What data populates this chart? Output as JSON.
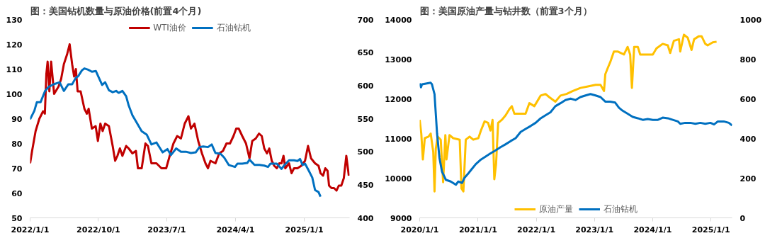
{
  "chart_data": [
    {
      "type": "line",
      "title": "图：美国钻机数量与原油价格(前置4个月)",
      "legend": "top",
      "grid": false,
      "xlim": [
        "2022-01-01",
        "2025-07-01"
      ],
      "xticks": [
        {
          "value": "2022-01-01",
          "label": "2022/1/1"
        },
        {
          "value": "2022-10-01",
          "label": "2022/10/1"
        },
        {
          "value": "2023-07-01",
          "label": "2023/7/1"
        },
        {
          "value": "2024-04-01",
          "label": "2024/4/1"
        },
        {
          "value": "2025-01-01",
          "label": "2025/1/1"
        }
      ],
      "ylim": [
        50,
        130
      ],
      "yticks": [
        50,
        60,
        70,
        80,
        90,
        100,
        110,
        120,
        130
      ],
      "y2lim": [
        400,
        700
      ],
      "y2ticks": [
        400,
        450,
        500,
        550,
        600,
        650,
        700
      ],
      "series": [
        {
          "name": "WTI油价",
          "color": "#c00000",
          "x": [
            "2022-01-01",
            "2022-01-09",
            "2022-01-23",
            "2022-02-07",
            "2022-02-22",
            "2022-03-01",
            "2022-03-07",
            "2022-03-12",
            "2022-03-19",
            "2022-03-26",
            "2022-04-07",
            "2022-04-25",
            "2022-05-05",
            "2022-05-16",
            "2022-05-29",
            "2022-06-08",
            "2022-06-18",
            "2022-06-26",
            "2022-07-03",
            "2022-07-10",
            "2022-07-22",
            "2022-08-06",
            "2022-08-16",
            "2022-08-23",
            "2022-09-05",
            "2022-09-20",
            "2022-09-29",
            "2022-10-09",
            "2022-10-18",
            "2022-10-28",
            "2022-11-12",
            "2022-11-27",
            "2022-12-07",
            "2022-12-16",
            "2022-12-26",
            "2023-01-05",
            "2023-01-20",
            "2023-01-30",
            "2023-02-14",
            "2023-02-28",
            "2023-03-08",
            "2023-03-23",
            "2023-04-07",
            "2023-04-17",
            "2023-05-01",
            "2023-05-21",
            "2023-06-10",
            "2023-06-29",
            "2023-07-13",
            "2023-07-28",
            "2023-08-12",
            "2023-08-27",
            "2023-09-11",
            "2023-09-26",
            "2023-10-06",
            "2023-10-20",
            "2023-11-04",
            "2023-11-19",
            "2023-12-03",
            "2023-12-13",
            "2023-12-23",
            "2024-01-12",
            "2024-01-27",
            "2024-02-11",
            "2024-02-25",
            "2024-03-10",
            "2024-03-24",
            "2024-04-04",
            "2024-04-14",
            "2024-04-28",
            "2024-05-13",
            "2024-05-27",
            "2024-06-07",
            "2024-06-21",
            "2024-07-04",
            "2024-07-15",
            "2024-07-25",
            "2024-08-05",
            "2024-08-14",
            "2024-08-24",
            "2024-09-03",
            "2024-09-13",
            "2024-09-23",
            "2024-10-02",
            "2024-10-10",
            "2024-10-17",
            "2024-11-01",
            "2024-11-11",
            "2024-11-21",
            "2024-12-05",
            "2024-12-20",
            "2025-01-04",
            "2025-01-16",
            "2025-01-28",
            "2025-02-13",
            "2025-02-27",
            "2025-03-07",
            "2025-03-17",
            "2025-03-26",
            "2025-04-04",
            "2025-04-10",
            "2025-04-20",
            "2025-04-30",
            "2025-05-10",
            "2025-05-19",
            "2025-05-29",
            "2025-06-08",
            "2025-06-18",
            "2025-06-28"
          ],
          "values": [
            72,
            77,
            85,
            90,
            93,
            92,
            108,
            113,
            101,
            113,
            100,
            103,
            106,
            112,
            116,
            120,
            112,
            107,
            110,
            101,
            101,
            94,
            92,
            94,
            86,
            87,
            81,
            88,
            85,
            88,
            87,
            79,
            73,
            75,
            78,
            75,
            79,
            78,
            76,
            77,
            70,
            70,
            80,
            79,
            72,
            72,
            70,
            70,
            75,
            80,
            83,
            82,
            88,
            91,
            86,
            88,
            81,
            76,
            72,
            70,
            73,
            72,
            76,
            77,
            80,
            80,
            83,
            86,
            86,
            83,
            80,
            74,
            81,
            82,
            84,
            83,
            78,
            76,
            78,
            73,
            71,
            70,
            72,
            72,
            75,
            70,
            72,
            68,
            70,
            70,
            71,
            73,
            79,
            74,
            72,
            71,
            68,
            67,
            70,
            69,
            63,
            62,
            62,
            61,
            63,
            63,
            66,
            75,
            67
          ]
        },
        {
          "name": "石油钻机",
          "color": "#0070c0",
          "axis": "y2",
          "x": [
            "2022-01-01",
            "2022-01-18",
            "2022-01-28",
            "2022-02-12",
            "2022-03-02",
            "2022-03-16",
            "2022-04-05",
            "2022-04-29",
            "2022-05-16",
            "2022-06-03",
            "2022-06-18",
            "2022-07-03",
            "2022-07-12",
            "2022-07-27",
            "2022-08-06",
            "2022-08-21",
            "2022-09-05",
            "2022-09-21",
            "2022-10-04",
            "2022-10-16",
            "2022-10-28",
            "2022-11-12",
            "2022-11-27",
            "2022-12-11",
            "2022-12-21",
            "2023-01-05",
            "2023-01-20",
            "2023-01-30",
            "2023-02-14",
            "2023-03-03",
            "2023-03-23",
            "2023-04-12",
            "2023-05-01",
            "2023-05-21",
            "2023-06-05",
            "2023-06-15",
            "2023-07-04",
            "2023-07-18",
            "2023-08-08",
            "2023-08-27",
            "2023-09-16",
            "2023-10-06",
            "2023-10-25",
            "2023-11-09",
            "2023-11-24",
            "2023-12-13",
            "2023-12-28",
            "2024-01-12",
            "2024-02-01",
            "2024-02-16",
            "2024-03-05",
            "2024-03-30",
            "2024-04-09",
            "2024-04-28",
            "2024-05-18",
            "2024-05-27",
            "2024-06-16",
            "2024-07-06",
            "2024-07-25",
            "2024-08-09",
            "2024-08-19",
            "2024-09-13",
            "2024-10-02",
            "2024-10-12",
            "2024-11-01",
            "2024-11-21",
            "2024-12-05",
            "2024-12-15",
            "2024-12-25",
            "2025-01-04",
            "2025-01-18",
            "2025-02-02",
            "2025-02-13",
            "2025-02-27",
            "2025-03-07"
          ],
          "values": [
            549,
            562,
            575,
            575,
            592,
            598,
            602,
            605,
            592,
            602,
            602,
            612,
            614,
            623,
            626,
            624,
            621,
            622,
            611,
            601,
            605,
            593,
            590,
            592,
            589,
            592,
            584,
            570,
            555,
            544,
            531,
            526,
            511,
            514,
            505,
            499,
            504,
            495,
            505,
            500,
            500,
            498,
            499,
            507,
            508,
            507,
            511,
            498,
            497,
            491,
            480,
            477,
            482,
            482,
            483,
            488,
            480,
            480,
            479,
            477,
            482,
            482,
            474,
            479,
            487,
            487,
            486,
            489,
            480,
            482,
            472,
            461,
            442,
            439,
            432
          ]
        }
      ]
    },
    {
      "type": "line",
      "title": "图：美国原油产量与钻井数（前置3个月）",
      "legend": "bottom",
      "grid": false,
      "xlim": [
        "2020-01-01",
        "2025-05-13"
      ],
      "xticks": [
        {
          "value": "2020-01-01",
          "label": "2020/1/1"
        },
        {
          "value": "2021-01-01",
          "label": "2021/1/1"
        },
        {
          "value": "2022-01-01",
          "label": "2022/1/1"
        },
        {
          "value": "2023-01-01",
          "label": "2023/1/1"
        },
        {
          "value": "2024-01-01",
          "label": "2024/1/1"
        },
        {
          "value": "2025-01-01",
          "label": "2025/1/1"
        }
      ],
      "ylim": [
        9000,
        14000
      ],
      "yticks": [
        9000,
        10000,
        11000,
        12000,
        13000,
        14000
      ],
      "y2lim": [
        0,
        1000
      ],
      "y2ticks": [
        0,
        200,
        400,
        600,
        800,
        1000
      ],
      "series": [
        {
          "name": "原油产量",
          "color": "#ffc000",
          "x": [
            "2020-01-01",
            "2020-01-11",
            "2020-01-21",
            "2020-02-02",
            "2020-02-25",
            "2020-03-10",
            "2020-03-26",
            "2020-04-03",
            "2020-04-11",
            "2020-04-23",
            "2020-05-12",
            "2020-05-27",
            "2020-06-10",
            "2020-06-17",
            "2020-07-06",
            "2020-07-29",
            "2020-09-08",
            "2020-09-19",
            "2020-10-01",
            "2020-10-16",
            "2020-11-09",
            "2020-12-02",
            "2021-01-03",
            "2021-01-19",
            "2021-02-11",
            "2021-03-05",
            "2021-03-20",
            "2021-04-02",
            "2021-04-13",
            "2021-04-24",
            "2021-05-07",
            "2021-05-30",
            "2021-06-23",
            "2021-07-16",
            "2021-08-01",
            "2021-08-17",
            "2021-09-07",
            "2021-10-26",
            "2021-11-19",
            "2021-12-20",
            "2022-01-29",
            "2022-02-28",
            "2022-03-23",
            "2022-05-01",
            "2022-06-02",
            "2022-07-10",
            "2022-08-19",
            "2022-10-05",
            "2022-11-21",
            "2023-01-08",
            "2023-02-08",
            "2023-03-02",
            "2023-03-10",
            "2023-03-25",
            "2023-04-10",
            "2023-05-03",
            "2023-05-26",
            "2023-07-05",
            "2023-07-28",
            "2023-08-13",
            "2023-08-24",
            "2023-09-07",
            "2023-09-30",
            "2023-10-15",
            "2023-11-16",
            "2024-01-02",
            "2024-01-25",
            "2024-03-04",
            "2024-04-05",
            "2024-04-20",
            "2024-05-13",
            "2024-06-14",
            "2024-06-22",
            "2024-07-15",
            "2024-08-08",
            "2024-09-01",
            "2024-09-17",
            "2024-10-17",
            "2024-11-03",
            "2024-11-26",
            "2024-12-11",
            "2025-01-12",
            "2025-02-05"
          ],
          "values": [
            11470,
            11124,
            10472,
            11009,
            11048,
            11124,
            10664,
            9667,
            10740,
            11048,
            10970,
            9897,
            11086,
            10472,
            11086,
            11009,
            10970,
            9744,
            9667,
            10970,
            11048,
            10970,
            11009,
            11201,
            11431,
            11393,
            11201,
            11470,
            9974,
            10357,
            11393,
            11470,
            11585,
            11738,
            11815,
            11623,
            11623,
            11623,
            11891,
            11815,
            12083,
            12122,
            12045,
            11929,
            12083,
            12122,
            12198,
            12275,
            12313,
            12352,
            12352,
            12198,
            12620,
            12773,
            12926,
            13194,
            13194,
            13117,
            13309,
            13117,
            12275,
            13309,
            13309,
            13117,
            13117,
            13117,
            13271,
            13386,
            13348,
            13156,
            13463,
            13502,
            13194,
            13616,
            13540,
            13233,
            13502,
            13578,
            13578,
            13386,
            13348,
            13425,
            13440
          ]
        },
        {
          "name": "石油钻机",
          "color": "#0070c0",
          "axis": "y2",
          "x": [
            "2020-01-01",
            "2020-01-09",
            "2020-01-16",
            "2020-03-10",
            "2020-03-18",
            "2020-04-03",
            "2020-04-19",
            "2020-05-04",
            "2020-05-20",
            "2020-06-13",
            "2020-07-14",
            "2020-08-15",
            "2020-08-30",
            "2020-09-23",
            "2020-10-08",
            "2020-11-02",
            "2020-11-25",
            "2020-12-18",
            "2021-01-19",
            "2021-02-19",
            "2021-03-20",
            "2021-04-21",
            "2021-05-22",
            "2021-06-23",
            "2021-07-24",
            "2021-08-25",
            "2021-09-25",
            "2021-10-26",
            "2021-11-27",
            "2021-12-28",
            "2022-01-29",
            "2022-02-28",
            "2022-03-31",
            "2022-05-01",
            "2022-06-02",
            "2022-07-03",
            "2022-08-04",
            "2022-09-04",
            "2022-10-05",
            "2022-11-06",
            "2022-12-07",
            "2023-01-08",
            "2023-02-08",
            "2023-03-10",
            "2023-04-10",
            "2023-05-11",
            "2023-06-04",
            "2023-06-27",
            "2023-07-28",
            "2023-08-29",
            "2023-09-30",
            "2023-10-31",
            "2023-12-01",
            "2024-01-02",
            "2024-02-03",
            "2024-03-04",
            "2024-04-05",
            "2024-05-06",
            "2024-06-07",
            "2024-06-22",
            "2024-07-23",
            "2024-08-24",
            "2024-09-25",
            "2024-10-26",
            "2024-11-26",
            "2024-12-28",
            "2025-01-20",
            "2025-02-13",
            "2025-03-22",
            "2025-04-23",
            "2025-05-13"
          ],
          "values": [
            678,
            658,
            673,
            681,
            673,
            624,
            425,
            302,
            233,
            192,
            183,
            167,
            183,
            176,
            202,
            225,
            248,
            271,
            294,
            310,
            325,
            340,
            356,
            371,
            387,
            402,
            433,
            448,
            463,
            479,
            502,
            517,
            532,
            563,
            578,
            594,
            601,
            594,
            609,
            617,
            624,
            617,
            609,
            586,
            586,
            581,
            555,
            540,
            525,
            509,
            502,
            494,
            498,
            494,
            494,
            505,
            502,
            494,
            486,
            474,
            479,
            479,
            474,
            479,
            474,
            479,
            471,
            486,
            486,
            479,
            466
          ]
        }
      ]
    }
  ]
}
